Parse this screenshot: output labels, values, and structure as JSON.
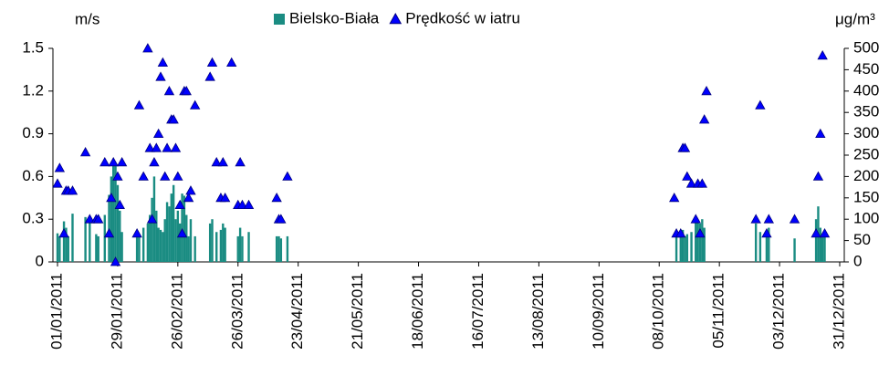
{
  "chart_data": {
    "type": "bar",
    "y_label": "m/s",
    "y2_label": "μg/m³",
    "x": [
      "01/01/2011",
      "02/01/2011",
      "04/01/2011",
      "05/01/2011",
      "06/01/2011",
      "08/01/2011",
      "14/01/2011",
      "16/01/2011",
      "19/01/2011",
      "20/01/2011",
      "23/01/2011",
      "25/01/2011",
      "26/01/2011",
      "27/01/2011",
      "28/01/2011",
      "29/01/2011",
      "30/01/2011",
      "31/01/2011",
      "07/02/2011",
      "08/02/2011",
      "10/02/2011",
      "12/02/2011",
      "13/02/2011",
      "14/02/2011",
      "15/02/2011",
      "16/02/2011",
      "17/02/2011",
      "18/02/2011",
      "19/02/2011",
      "20/02/2011",
      "21/02/2011",
      "22/02/2011",
      "23/02/2011",
      "24/02/2011",
      "25/02/2011",
      "26/02/2011",
      "27/02/2011",
      "28/02/2011",
      "01/03/2011",
      "02/03/2011",
      "03/03/2011",
      "04/03/2011",
      "06/03/2011",
      "13/03/2011",
      "14/03/2011",
      "16/03/2011",
      "18/03/2011",
      "19/03/2011",
      "20/03/2011",
      "23/03/2011",
      "26/03/2011",
      "27/03/2011",
      "28/03/2011",
      "31/03/2011",
      "13/04/2011",
      "14/04/2011",
      "15/04/2011",
      "18/04/2011",
      "15/10/2011",
      "16/10/2011",
      "18/10/2011",
      "19/10/2011",
      "20/10/2011",
      "21/10/2011",
      "23/10/2011",
      "25/10/2011",
      "26/10/2011",
      "27/10/2011",
      "28/10/2011",
      "29/10/2011",
      "30/10/2011",
      "22/11/2011",
      "24/11/2011",
      "27/11/2011",
      "28/11/2011",
      "10/12/2011",
      "20/12/2011",
      "21/12/2011",
      "22/12/2011",
      "23/12/2011",
      "24/12/2011"
    ],
    "series": [
      {
        "name": "Bielsko-Biała",
        "type": "bar",
        "axis": "y2",
        "color": "#1a8c82",
        "values": [
          67,
          60,
          95,
          80,
          60,
          113,
          105,
          100,
          65,
          60,
          110,
          157,
          200,
          240,
          230,
          180,
          120,
          70,
          70,
          65,
          80,
          90,
          110,
          150,
          200,
          120,
          80,
          75,
          70,
          100,
          140,
          130,
          160,
          180,
          100,
          120,
          90,
          160,
          155,
          110,
          60,
          100,
          60,
          90,
          100,
          70,
          75,
          90,
          80,
          null,
          60,
          80,
          60,
          70,
          60,
          60,
          55,
          60,
          null,
          60,
          65,
          75,
          60,
          65,
          70,
          100,
          95,
          90,
          100,
          80,
          null,
          90,
          70,
          60,
          80,
          55,
          100,
          130,
          80,
          60,
          60
        ]
      },
      {
        "name": "Prędkość w iatru",
        "type": "scatter",
        "axis": "y",
        "color": "#0000ff",
        "values": [
          0.55,
          0.66,
          0.2,
          0.5,
          0.5,
          0.5,
          0.77,
          0.3,
          0.3,
          0.3,
          0.7,
          0.2,
          0.45,
          0.7,
          0.0,
          0.6,
          0.4,
          0.7,
          0.2,
          1.1,
          0.6,
          1.5,
          0.8,
          0.3,
          0.7,
          0.8,
          0.9,
          1.3,
          1.4,
          0.6,
          0.8,
          1.2,
          1.0,
          1.0,
          0.8,
          0.6,
          0.4,
          0.2,
          1.2,
          1.2,
          0.45,
          0.5,
          1.1,
          1.3,
          1.4,
          0.7,
          0.45,
          0.7,
          0.45,
          1.4,
          0.4,
          0.7,
          0.4,
          0.4,
          0.45,
          0.3,
          0.3,
          0.6,
          0.45,
          0.2,
          0.2,
          0.8,
          0.8,
          0.6,
          0.55,
          0.3,
          0.55,
          0.2,
          0.55,
          1.0,
          1.2,
          0.3,
          1.1,
          0.2,
          0.3,
          0.3,
          0.2,
          0.6,
          0.9,
          1.45,
          0.2
        ]
      }
    ],
    "xlim": [
      "01/01/2011",
      "31/12/2011"
    ],
    "xticks": [
      "01/01/2011",
      "29/01/2011",
      "26/02/2011",
      "26/03/2011",
      "23/04/2011",
      "21/05/2011",
      "18/06/2011",
      "16/07/2011",
      "13/08/2011",
      "10/09/2011",
      "08/10/2011",
      "05/11/2011",
      "03/12/2011",
      "31/12/2011"
    ],
    "ylim": [
      0,
      1.5
    ],
    "yticks": [
      0,
      0.3,
      0.6,
      0.9,
      1.2,
      1.5
    ],
    "y2lim": [
      0,
      500
    ],
    "y2ticks": [
      0,
      50,
      100,
      150,
      200,
      250,
      300,
      350,
      400,
      450,
      500
    ],
    "legend": "top"
  }
}
